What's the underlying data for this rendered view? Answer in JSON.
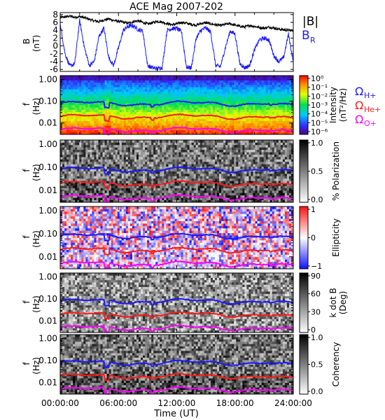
{
  "chart_data": {
    "type": "heatmap",
    "title": "ACE Mag 2007-202",
    "xlabel": "Time (UT)",
    "x_ticks": [
      "00:00:00",
      "06:00:00",
      "12:00:00",
      "18:00:00",
      "24:00:00"
    ],
    "xlim": [
      0,
      24
    ],
    "panels": [
      {
        "id": "field",
        "type": "line",
        "ylabel": "B",
        "yunit": "(nT)",
        "ylim": [
          -6.5,
          8.5
        ],
        "y_ticks": [
          "8",
          "6",
          "4",
          "2",
          "0",
          "-2",
          "-4",
          "-6"
        ],
        "y_tick_values": [
          8,
          6,
          4,
          2,
          0,
          -2,
          -4,
          -6
        ],
        "legend": [
          {
            "label": "|B|",
            "color": "#000000"
          },
          {
            "label": "B",
            "sub": "R",
            "color": "#1a1aff"
          }
        ],
        "series": [
          {
            "name": "|B|",
            "color": "#000000",
            "x": [
              0,
              0.5,
              1,
              1.5,
              2,
              2.5,
              3,
              3.5,
              4,
              4.5,
              5,
              5.5,
              6,
              6.5,
              7,
              7.5,
              8,
              8.5,
              9,
              9.5,
              10,
              10.5,
              11,
              11.5,
              12,
              12.5,
              13,
              13.5,
              14,
              14.5,
              15,
              15.5,
              16,
              16.5,
              17,
              17.5,
              18,
              18.5,
              19,
              19.5,
              20,
              20.5,
              21,
              21.5,
              22,
              22.5,
              23,
              23.5,
              24
            ],
            "y": [
              7.2,
              7.4,
              7.6,
              7.3,
              7.5,
              7.2,
              6.8,
              6.4,
              6.2,
              6.6,
              6.9,
              6.5,
              6.3,
              6.0,
              5.8,
              6.2,
              6.4,
              6.0,
              5.6,
              5.9,
              6.3,
              6.1,
              5.7,
              5.4,
              5.6,
              6.0,
              5.8,
              5.5,
              5.3,
              5.7,
              5.9,
              5.6,
              5.4,
              5.2,
              5.5,
              5.7,
              5.3,
              5.0,
              4.8,
              5.2,
              5.0,
              4.7,
              4.5,
              4.8,
              4.6,
              4.3,
              4.1,
              4.0,
              3.9
            ]
          },
          {
            "name": "B_R",
            "color": "#1a1aff",
            "x": [
              0,
              0.5,
              1,
              1.5,
              2,
              2.5,
              3,
              3.5,
              4,
              4.5,
              5,
              5.5,
              6,
              6.5,
              7,
              7.5,
              8,
              8.5,
              9,
              9.5,
              10,
              10.5,
              11,
              11.5,
              12,
              12.5,
              13,
              13.5,
              14,
              14.5,
              15,
              15.5,
              16,
              16.5,
              17,
              17.5,
              18,
              18.5,
              19,
              19.5,
              20,
              20.5,
              21,
              21.5,
              22,
              22.5,
              23,
              23.5,
              24
            ],
            "y": [
              5.5,
              -2,
              -5.2,
              -4.5,
              6.5,
              -0.5,
              -5,
              -4,
              2.5,
              4.5,
              -3,
              -5,
              -0.5,
              4,
              5,
              5.2,
              4.2,
              3.8,
              -5,
              -5.6,
              -5.8,
              -5.5,
              4,
              4.4,
              4.5,
              3.5,
              -5.4,
              -5.6,
              2,
              4,
              4.6,
              3.5,
              -5,
              -5.3,
              -0.5,
              3.8,
              3,
              -4.5,
              -5.6,
              -5,
              -1,
              1.5,
              2,
              1.5,
              -2.5,
              -4,
              -3,
              3,
              -4
            ]
          }
        ]
      },
      {
        "id": "intensity",
        "type": "heatmap",
        "ylabel": "f",
        "yunit": "(Hz)",
        "y_scale": "log",
        "ylim": [
          0.003,
          1.5
        ],
        "y_ticks": [
          "1.00",
          "0.10",
          "0.01"
        ],
        "colorbar": {
          "label": "Intensity",
          "unit": "(nT²/Hz)",
          "ticks": [
            "10⁰",
            "10⁻¹",
            "10⁻²",
            "10⁻³",
            "10⁻⁴",
            "10⁻⁵",
            "10⁻⁶"
          ],
          "colormap": "rainbow"
        },
        "show_gyro_legend": true
      },
      {
        "id": "polarization",
        "type": "heatmap",
        "ylabel": "f",
        "yunit": "(Hz)",
        "y_scale": "log",
        "y_ticks": [
          "1.00",
          "0.10",
          "0.01"
        ],
        "colorbar": {
          "label": "% Polarization",
          "unit": "",
          "ticks": [
            "1.0",
            "0.5",
            "0.0"
          ],
          "colormap": "gray"
        }
      },
      {
        "id": "ellipticity",
        "type": "heatmap",
        "ylabel": "f",
        "yunit": "(Hz)",
        "y_scale": "log",
        "y_ticks": [
          "1.00",
          "0.10",
          "0.01"
        ],
        "colorbar": {
          "label": "Ellipticity",
          "unit": "",
          "ticks": [
            "1",
            "0",
            "−1"
          ],
          "colormap": "bluered"
        }
      },
      {
        "id": "kdotb",
        "type": "heatmap",
        "ylabel": "f",
        "yunit": "(Hz)",
        "y_scale": "log",
        "y_ticks": [
          "1.00",
          "0.10",
          "0.01"
        ],
        "colorbar": {
          "label": "k dot B",
          "unit": "(Deg)",
          "ticks": [
            "90",
            "60",
            "30",
            "0"
          ],
          "colormap": "gray"
        }
      },
      {
        "id": "coherency",
        "type": "heatmap",
        "ylabel": "f",
        "yunit": "(Hz)",
        "y_scale": "log",
        "y_ticks": [
          "1.00",
          "0.10",
          "0.01"
        ],
        "colorbar": {
          "label": "Coherency",
          "unit": "",
          "ticks": [
            "1.0",
            "0.5",
            "0.0"
          ],
          "colormap": "gray"
        }
      }
    ],
    "gyrofrequency_lines": [
      {
        "name": "Ω",
        "sub": "H+",
        "color": "#1a1aff",
        "approx_hz": 0.08
      },
      {
        "name": "Ω",
        "sub": "He+",
        "color": "#ff1a1a",
        "approx_hz": 0.02
      },
      {
        "name": "Ω",
        "sub": "O+",
        "color": "#ff00ff",
        "approx_hz": 0.005
      }
    ]
  }
}
